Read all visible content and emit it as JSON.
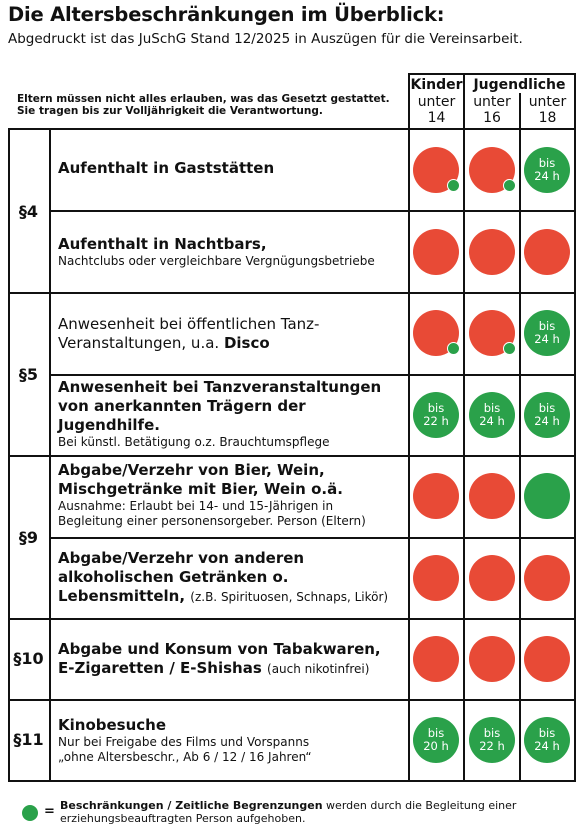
{
  "title": "Die Altersbeschränkungen im Überblick:",
  "subtitle": "Abgedruckt ist das JuSchG Stand 12/2025 in Auszügen für die Vereinsarbeit.",
  "intro": "Eltern müssen nicht alles erlauben, was das Gesetzt gestattet. Sie tragen bis zur Volljährigkeit die Verantwortung.",
  "header": {
    "kinder": "Kinder",
    "jugendliche": "Jugendliche",
    "cols": [
      {
        "under": "unter",
        "age": "14"
      },
      {
        "under": "unter",
        "age": "16"
      },
      {
        "under": "unter",
        "age": "18"
      }
    ]
  },
  "sections": [
    "§4",
    "§5",
    "§9",
    "§10",
    "§11"
  ],
  "rows": [
    {
      "line1": "Aufenthalt in Gaststätten",
      "cells": [
        {
          "c": "red",
          "mini": true,
          "t": ""
        },
        {
          "c": "red",
          "mini": true,
          "t": ""
        },
        {
          "c": "green",
          "mini": false,
          "t": "bis 24 h"
        }
      ]
    },
    {
      "line1": "Aufenthalt in Nachtbars,",
      "line2": "Nachtclubs oder vergleichbare Vergnügungsbetriebe",
      "cells": [
        {
          "c": "red",
          "mini": false,
          "t": ""
        },
        {
          "c": "red",
          "mini": false,
          "t": ""
        },
        {
          "c": "red",
          "mini": false,
          "t": ""
        }
      ]
    },
    {
      "line1": "Anwesenheit bei öffentlichen Tanz-",
      "line2a": "Veranstaltungen, u.a. ",
      "line2b": "Disco",
      "cells": [
        {
          "c": "red",
          "mini": true,
          "t": ""
        },
        {
          "c": "red",
          "mini": true,
          "t": ""
        },
        {
          "c": "green",
          "mini": false,
          "t": "bis 24 h"
        }
      ]
    },
    {
      "line1": "Anwesenheit bei Tanzveranstaltungen",
      "line2": "von anerkannten Trägern der",
      "line3": "Jugendhilfe.",
      "line4": "Bei künstl. Betätigung o.z. Brauchtumspflege",
      "cells": [
        {
          "c": "green",
          "mini": false,
          "t": "bis 22 h"
        },
        {
          "c": "green",
          "mini": false,
          "t": "bis 24 h"
        },
        {
          "c": "green",
          "mini": false,
          "t": "bis 24 h"
        }
      ]
    },
    {
      "line1": "Abgabe/Verzehr von Bier, Wein,",
      "line2": "Mischgetränke mit Bier, Wein o.ä.",
      "line3": "Ausnahme: Erlaubt bei 14- und 15-Jährigen in",
      "line4": "Begleitung einer personensorgeber. Person (Eltern)",
      "cells": [
        {
          "c": "red",
          "mini": false,
          "t": ""
        },
        {
          "c": "red",
          "mini": false,
          "t": ""
        },
        {
          "c": "green",
          "mini": false,
          "t": ""
        }
      ]
    },
    {
      "line1": "Abgabe/Verzehr von anderen",
      "line2": "alkoholischen Getränken o.",
      "line3a": "Lebensmitteln, ",
      "line3b": "(z.B. Spirituosen, Schnaps, Likör)",
      "cells": [
        {
          "c": "red",
          "mini": false,
          "t": ""
        },
        {
          "c": "red",
          "mini": false,
          "t": ""
        },
        {
          "c": "red",
          "mini": false,
          "t": ""
        }
      ]
    },
    {
      "line1": "Abgabe und Konsum von Tabakwaren,",
      "line2a": "E-Zigaretten / E-Shishas ",
      "line2b": "(auch nikotinfrei)",
      "cells": [
        {
          "c": "red",
          "mini": false,
          "t": ""
        },
        {
          "c": "red",
          "mini": false,
          "t": ""
        },
        {
          "c": "red",
          "mini": false,
          "t": ""
        }
      ]
    },
    {
      "line1": "Kinobesuche",
      "line2": "Nur bei Freigabe des Films und Vorspanns",
      "line3": "„ohne Altersbeschr., Ab 6 / 12 / 16 Jahren“",
      "cells": [
        {
          "c": "green",
          "mini": false,
          "t": "bis 20 h"
        },
        {
          "c": "green",
          "mini": false,
          "t": "bis 22 h"
        },
        {
          "c": "green",
          "mini": false,
          "t": "bis 24 h"
        }
      ]
    }
  ],
  "legend": {
    "eq": "=",
    "bold": "Beschränkungen / Zeitliche Begrenzungen",
    "rest": " werden durch die Begleitung einer erziehungsbeauftragten Person aufgehoben."
  },
  "colors": {
    "red": "#e84a36",
    "green": "#2aa14a"
  }
}
